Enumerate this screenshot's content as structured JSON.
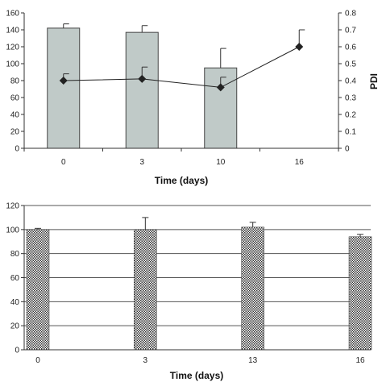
{
  "chart_data": [
    {
      "type": "bar",
      "categories": [
        "0",
        "3",
        "10",
        "16"
      ],
      "series": [
        {
          "type": "bar",
          "axis": "left",
          "values": [
            142,
            137,
            95,
            null
          ],
          "errors": [
            5,
            8,
            23,
            null
          ],
          "color": "#c0cac8"
        },
        {
          "type": "line",
          "axis": "right",
          "name": "PDI",
          "values": [
            0.4,
            0.41,
            0.36,
            0.6
          ],
          "errors": [
            0.04,
            0.07,
            0.06,
            0.1
          ],
          "color": "#222222"
        }
      ],
      "xlabel": "Time (days)",
      "ylabel": "",
      "y2label": "PDI",
      "ylim": [
        0,
        160
      ],
      "y_ticks": [
        0,
        20,
        40,
        60,
        80,
        100,
        120,
        140,
        160
      ],
      "y2lim": [
        0,
        0.8
      ],
      "y2_ticks": [
        0,
        0.1,
        0.2,
        0.3,
        0.4,
        0.5,
        0.6,
        0.7,
        0.8
      ],
      "grid": false
    },
    {
      "type": "bar",
      "categories": [
        "0",
        "3",
        "13",
        "16"
      ],
      "series": [
        {
          "values": [
            100,
            100,
            102,
            94
          ],
          "errors": [
            1,
            10,
            4,
            2
          ],
          "pattern": "checkered"
        }
      ],
      "xlabel": "Time (days)",
      "ylabel": "",
      "ylim": [
        0,
        120
      ],
      "y_ticks": [
        0,
        20,
        40,
        60,
        80,
        100,
        120
      ],
      "grid": true
    }
  ]
}
